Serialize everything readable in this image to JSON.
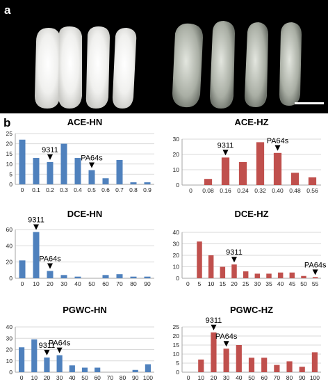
{
  "panel_a_label": "a",
  "panel_b_label": "b",
  "colors": {
    "blue": "#4f81bd",
    "red": "#c0504d",
    "grid": "#d9d9d9",
    "axis": "#a6a6a6",
    "background": "#000000"
  },
  "chart_data": [
    {
      "type": "bar",
      "title": "ACE-HN",
      "color": "#4f81bd",
      "categories": [
        "0",
        "0.1",
        "0.2",
        "0.3",
        "0.4",
        "0.5",
        "0.6",
        "0.7",
        "0.8",
        "0.9"
      ],
      "values": [
        22,
        13,
        11,
        20,
        13,
        7,
        3,
        12,
        1,
        1
      ],
      "ylim": [
        0,
        25
      ],
      "yticks": [
        "0",
        "5",
        "10",
        "15",
        "20",
        "25"
      ],
      "annotations": [
        {
          "label": "9311",
          "category": 2
        },
        {
          "label": "PA64s",
          "category": 5
        }
      ]
    },
    {
      "type": "bar",
      "title": "ACE-HZ",
      "color": "#c0504d",
      "categories": [
        "0",
        "0.08",
        "0.16",
        "0.24",
        "0.32",
        "0.40",
        "0.48",
        "0.56"
      ],
      "values": [
        0,
        4,
        18,
        15,
        28,
        21,
        8,
        5
      ],
      "ylim": [
        0,
        30
      ],
      "yticks": [
        "0",
        "10",
        "20",
        "30"
      ],
      "annotations": [
        {
          "label": "9311",
          "category": 2
        },
        {
          "label": "PA64s",
          "category": 5
        }
      ]
    },
    {
      "type": "bar",
      "title": "DCE-HN",
      "color": "#4f81bd",
      "categories": [
        "0",
        "10",
        "20",
        "30",
        "40",
        "50",
        "60",
        "70",
        "80",
        "90"
      ],
      "values": [
        22,
        57,
        9,
        4,
        2,
        0,
        4,
        5,
        2,
        2
      ],
      "ylim": [
        0,
        60
      ],
      "yticks": [
        "0",
        "20",
        "40",
        "60"
      ],
      "annotations": [
        {
          "label": "9311",
          "category": 1
        },
        {
          "label": "PA64s",
          "category": 2
        }
      ]
    },
    {
      "type": "bar",
      "title": "DCE-HZ",
      "color": "#c0504d",
      "categories": [
        "0",
        "5",
        "10",
        "15",
        "20",
        "25",
        "30",
        "35",
        "40",
        "45",
        "50",
        "55"
      ],
      "values": [
        0,
        32,
        20,
        10,
        12,
        6,
        4,
        4,
        5,
        5,
        2,
        1
      ],
      "ylim": [
        0,
        40
      ],
      "yticks": [
        "0",
        "10",
        "20",
        "30",
        "40"
      ],
      "annotations": [
        {
          "label": "9311",
          "category": 4
        },
        {
          "label": "PA64s",
          "category": 11
        }
      ]
    },
    {
      "type": "bar",
      "title": "PGWC-HN",
      "color": "#4f81bd",
      "categories": [
        "0",
        "10",
        "20",
        "30",
        "40",
        "50",
        "60",
        "70",
        "80",
        "90",
        "100"
      ],
      "values": [
        22,
        29,
        13,
        15,
        6,
        4,
        4,
        0,
        0,
        2,
        7
      ],
      "ylim": [
        0,
        40
      ],
      "yticks": [
        "0",
        "10",
        "20",
        "30",
        "40"
      ],
      "annotations": [
        {
          "label": "9311",
          "category": 2
        },
        {
          "label": "PA64s",
          "category": 3
        }
      ]
    },
    {
      "type": "bar",
      "title": "PGWC-HZ",
      "color": "#c0504d",
      "categories": [
        "0",
        "10",
        "20",
        "30",
        "40",
        "50",
        "60",
        "70",
        "80",
        "90",
        "100"
      ],
      "values": [
        0,
        7,
        22,
        13,
        15,
        8,
        8,
        4,
        6,
        3,
        11
      ],
      "ylim": [
        0,
        25
      ],
      "yticks": [
        "0",
        "5",
        "10",
        "15",
        "20",
        "25"
      ],
      "annotations": [
        {
          "label": "9311",
          "category": 2
        },
        {
          "label": "PA64s",
          "category": 3
        }
      ]
    }
  ]
}
